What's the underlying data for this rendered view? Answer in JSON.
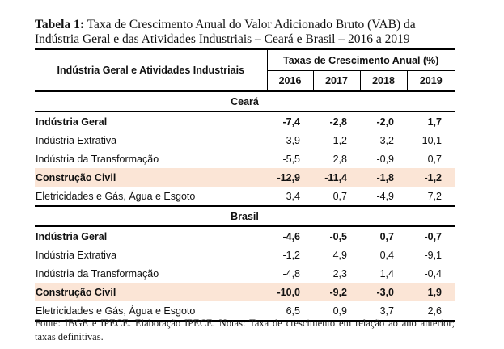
{
  "caption": {
    "label": "Tabela 1:",
    "text": "Taxa de Crescimento Anual do Valor Adicionado Bruto (VAB) da Indústria Geral e das Atividades Industriais – Ceará e Brasil – 2016 a 2019"
  },
  "header": {
    "row_label": "Indústria Geral e Atividades Industriais",
    "group": "Taxas de Crescimento Anual (%)",
    "years": [
      "2016",
      "2017",
      "2018",
      "2019"
    ]
  },
  "sections": [
    {
      "name": "Ceará",
      "rows": [
        {
          "label": "Indústria Geral",
          "values": [
            "-7,4",
            "-2,8",
            "-2,0",
            "1,7"
          ]
        },
        {
          "label": "Indústria Extrativa",
          "values": [
            "-3,9",
            "-1,2",
            "3,2",
            "10,1"
          ]
        },
        {
          "label": "Indústria da Transformação",
          "values": [
            "-5,5",
            "2,8",
            "-0,9",
            "0,7"
          ]
        },
        {
          "label": "Construção Civil",
          "values": [
            "-12,9",
            "-11,4",
            "-1,8",
            "-1,2"
          ]
        },
        {
          "label": "Eletricidades e Gás, Água e Esgoto",
          "values": [
            "3,4",
            "0,7",
            "-4,9",
            "7,2"
          ]
        }
      ]
    },
    {
      "name": "Brasil",
      "rows": [
        {
          "label": "Indústria Geral",
          "values": [
            "-4,6",
            "-0,5",
            "0,7",
            "-0,7"
          ]
        },
        {
          "label": "Indústria Extrativa",
          "values": [
            "-1,2",
            "4,9",
            "0,4",
            "-9,1"
          ]
        },
        {
          "label": "Indústria da Transformação",
          "values": [
            "-4,8",
            "2,3",
            "1,4",
            "-0,4"
          ]
        },
        {
          "label": "Construção Civil",
          "values": [
            "-10,0",
            "-9,2",
            "-3,0",
            "1,9"
          ]
        },
        {
          "label": "Eletricidades e Gás, Água e Esgoto",
          "values": [
            "6,5",
            "0,9",
            "3,7",
            "2,6"
          ]
        }
      ]
    }
  ],
  "highlight_color": "#fbe5d6",
  "footnote": "Fonte: IBGE e IPECE. Elaboração IPECE. Notas: Taxa de crescimento em relação ao ano anterior; taxas definitivas."
}
